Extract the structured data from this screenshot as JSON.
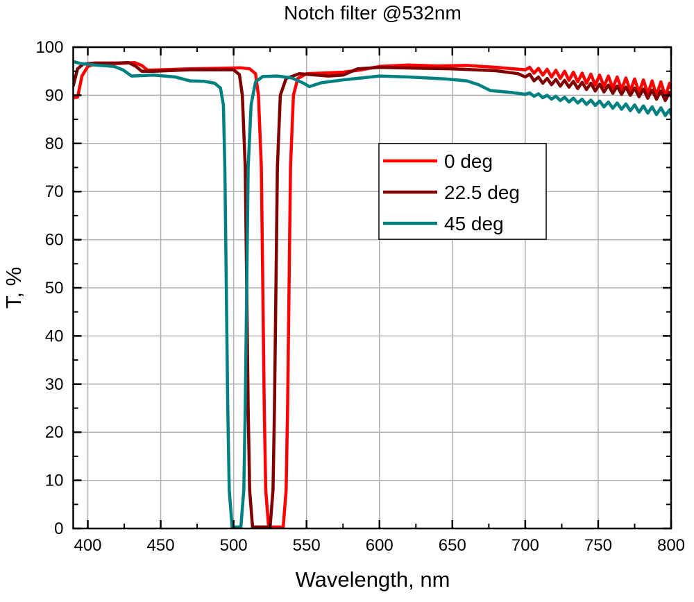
{
  "chart_data": {
    "type": "line",
    "title": "Notch filter @532nm",
    "xlabel": "Wavelength, nm",
    "ylabel": "T, %",
    "xlim": [
      390,
      800
    ],
    "ylim": [
      0,
      100
    ],
    "xticks": [
      400,
      450,
      500,
      550,
      600,
      650,
      700,
      750,
      800
    ],
    "yticks": [
      0,
      10,
      20,
      30,
      40,
      50,
      60,
      70,
      80,
      90,
      100
    ],
    "grid": true,
    "legend_placement": "center-right",
    "series": [
      {
        "name": "0 deg",
        "color": "#ff0000",
        "points": [
          [
            390,
            89.5
          ],
          [
            393,
            89.6
          ],
          [
            396,
            94
          ],
          [
            400,
            96
          ],
          [
            405,
            96.5
          ],
          [
            420,
            96.6
          ],
          [
            432,
            96.8
          ],
          [
            437,
            96.2
          ],
          [
            441,
            95.2
          ],
          [
            450,
            95.3
          ],
          [
            470,
            95.5
          ],
          [
            490,
            95.6
          ],
          [
            505,
            95.7
          ],
          [
            511,
            95.5
          ],
          [
            515,
            94.5
          ],
          [
            517,
            90
          ],
          [
            519,
            75
          ],
          [
            520,
            50
          ],
          [
            521,
            25
          ],
          [
            522,
            8
          ],
          [
            524,
            0.3
          ],
          [
            534,
            0.3
          ],
          [
            536,
            8
          ],
          [
            537,
            25
          ],
          [
            538,
            50
          ],
          [
            539,
            75
          ],
          [
            541,
            90
          ],
          [
            544,
            93.5
          ],
          [
            550,
            94.5
          ],
          [
            575,
            94.8
          ],
          [
            588,
            95.3
          ],
          [
            600,
            96
          ],
          [
            620,
            96.3
          ],
          [
            640,
            96.1
          ],
          [
            660,
            96.2
          ],
          [
            680,
            95.8
          ],
          [
            700,
            95.3
          ],
          [
            703,
            95.8
          ],
          [
            706,
            94.6
          ],
          [
            709,
            95.6
          ],
          [
            712,
            94.2
          ],
          [
            715,
            95.4
          ],
          [
            718,
            93.8
          ],
          [
            721,
            95.2
          ],
          [
            724,
            93.5
          ],
          [
            727,
            95.0
          ],
          [
            730,
            93.1
          ],
          [
            733,
            94.8
          ],
          [
            736,
            92.8
          ],
          [
            739,
            94.6
          ],
          [
            742,
            92.5
          ],
          [
            745,
            94.4
          ],
          [
            748,
            92.1
          ],
          [
            751,
            94.2
          ],
          [
            754,
            91.8
          ],
          [
            757,
            94.0
          ],
          [
            760,
            91.5
          ],
          [
            763,
            93.8
          ],
          [
            766,
            91.2
          ],
          [
            769,
            93.6
          ],
          [
            772,
            90.9
          ],
          [
            775,
            93.4
          ],
          [
            778,
            90.6
          ],
          [
            781,
            93.2
          ],
          [
            784,
            90.3
          ],
          [
            787,
            93.0
          ],
          [
            790,
            90.0
          ],
          [
            793,
            92.8
          ],
          [
            796,
            89.8
          ],
          [
            799,
            92.5
          ],
          [
            800,
            91.5
          ]
        ]
      },
      {
        "name": "22.5 deg",
        "color": "#800000",
        "points": [
          [
            390,
            92
          ],
          [
            393,
            95.5
          ],
          [
            397,
            96.5
          ],
          [
            405,
            96.7
          ],
          [
            420,
            96.7
          ],
          [
            428,
            96.8
          ],
          [
            433,
            96
          ],
          [
            437,
            95
          ],
          [
            445,
            95
          ],
          [
            470,
            95.3
          ],
          [
            490,
            95.3
          ],
          [
            500,
            95.3
          ],
          [
            504,
            94.3
          ],
          [
            506,
            90
          ],
          [
            508,
            75
          ],
          [
            509,
            50
          ],
          [
            510,
            25
          ],
          [
            511,
            8
          ],
          [
            513,
            0.3
          ],
          [
            525,
            0.3
          ],
          [
            527,
            8
          ],
          [
            528,
            25
          ],
          [
            529,
            50
          ],
          [
            530,
            75
          ],
          [
            532,
            90
          ],
          [
            536,
            93.5
          ],
          [
            545,
            94.5
          ],
          [
            565,
            94
          ],
          [
            575,
            94.2
          ],
          [
            585,
            95.5
          ],
          [
            600,
            95.8
          ],
          [
            630,
            95.6
          ],
          [
            650,
            95.5
          ],
          [
            680,
            95.1
          ],
          [
            695,
            94.5
          ],
          [
            700,
            93.8
          ],
          [
            703,
            94.4
          ],
          [
            706,
            93.0
          ],
          [
            709,
            93.8
          ],
          [
            712,
            92.5
          ],
          [
            715,
            93.5
          ],
          [
            718,
            92.2
          ],
          [
            721,
            93.3
          ],
          [
            724,
            91.9
          ],
          [
            727,
            93.1
          ],
          [
            730,
            91.7
          ],
          [
            733,
            92.9
          ],
          [
            736,
            91.4
          ],
          [
            739,
            92.7
          ],
          [
            742,
            91.2
          ],
          [
            745,
            92.5
          ],
          [
            748,
            90.9
          ],
          [
            751,
            92.3
          ],
          [
            754,
            90.7
          ],
          [
            757,
            92.1
          ],
          [
            760,
            90.4
          ],
          [
            763,
            91.9
          ],
          [
            766,
            90.2
          ],
          [
            769,
            91.7
          ],
          [
            772,
            90.0
          ],
          [
            775,
            91.5
          ],
          [
            778,
            89.7
          ],
          [
            781,
            91.3
          ],
          [
            784,
            89.4
          ],
          [
            787,
            91.1
          ],
          [
            790,
            89.2
          ],
          [
            793,
            90.9
          ],
          [
            796,
            88.9
          ],
          [
            799,
            90.6
          ],
          [
            800,
            89.8
          ]
        ]
      },
      {
        "name": "45 deg",
        "color": "#008080",
        "points": [
          [
            390,
            97
          ],
          [
            395,
            96.6
          ],
          [
            405,
            96.3
          ],
          [
            418,
            96
          ],
          [
            424,
            95.3
          ],
          [
            430,
            94
          ],
          [
            445,
            94.2
          ],
          [
            460,
            93.8
          ],
          [
            470,
            93
          ],
          [
            480,
            92.9
          ],
          [
            487,
            92.5
          ],
          [
            491,
            91.5
          ],
          [
            493,
            88
          ],
          [
            494,
            75
          ],
          [
            495,
            50
          ],
          [
            496,
            25
          ],
          [
            497,
            8
          ],
          [
            499,
            0.3
          ],
          [
            505,
            0.3
          ],
          [
            507,
            8
          ],
          [
            508,
            25
          ],
          [
            509,
            50
          ],
          [
            510,
            75
          ],
          [
            512,
            88
          ],
          [
            515,
            92.8
          ],
          [
            520,
            93.9
          ],
          [
            530,
            94
          ],
          [
            540,
            93.6
          ],
          [
            548,
            92.5
          ],
          [
            552,
            91.8
          ],
          [
            560,
            92.6
          ],
          [
            575,
            93.2
          ],
          [
            600,
            94
          ],
          [
            620,
            93.8
          ],
          [
            645,
            93.4
          ],
          [
            660,
            93
          ],
          [
            668,
            92.2
          ],
          [
            676,
            91
          ],
          [
            690,
            90.6
          ],
          [
            700,
            90.2
          ],
          [
            703,
            90.5
          ],
          [
            706,
            89.8
          ],
          [
            709,
            90.3
          ],
          [
            712,
            89.5
          ],
          [
            715,
            90.0
          ],
          [
            718,
            89.2
          ],
          [
            721,
            89.8
          ],
          [
            724,
            88.9
          ],
          [
            727,
            89.6
          ],
          [
            730,
            88.6
          ],
          [
            733,
            89.4
          ],
          [
            736,
            88.4
          ],
          [
            739,
            89.2
          ],
          [
            742,
            88.1
          ],
          [
            745,
            89.0
          ],
          [
            748,
            87.9
          ],
          [
            751,
            88.8
          ],
          [
            754,
            87.6
          ],
          [
            757,
            88.6
          ],
          [
            760,
            87.3
          ],
          [
            763,
            88.4
          ],
          [
            766,
            87.1
          ],
          [
            769,
            88.2
          ],
          [
            772,
            86.8
          ],
          [
            775,
            88.0
          ],
          [
            778,
            86.5
          ],
          [
            781,
            87.8
          ],
          [
            784,
            86.3
          ],
          [
            787,
            87.6
          ],
          [
            790,
            86.0
          ],
          [
            793,
            87.4
          ],
          [
            796,
            85.8
          ],
          [
            799,
            87.0
          ],
          [
            800,
            86.0
          ]
        ]
      }
    ]
  }
}
